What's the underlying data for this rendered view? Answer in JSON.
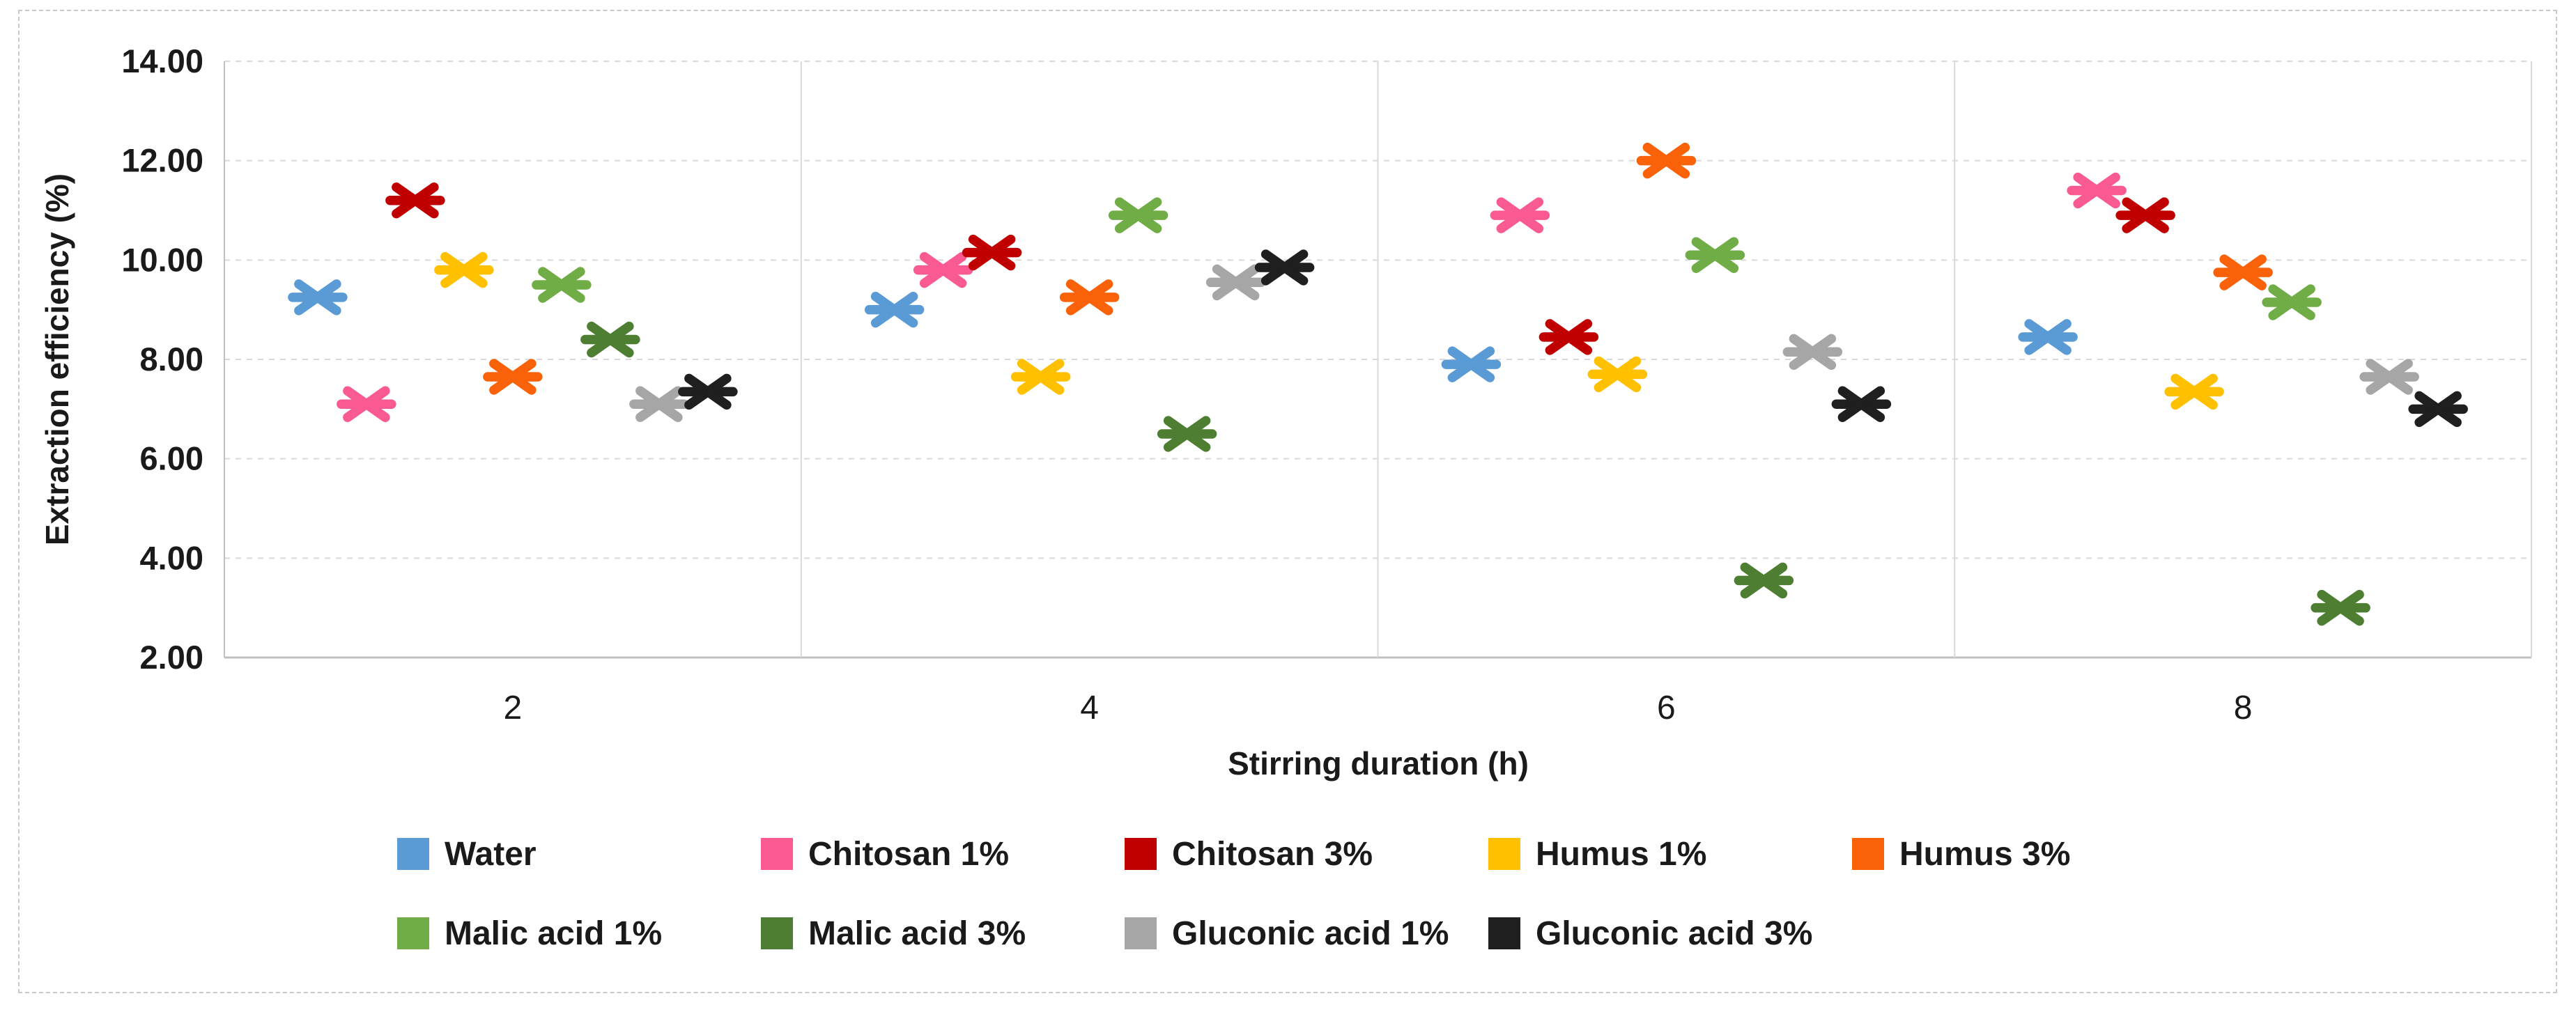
{
  "frame": {
    "background": "#ffffff",
    "border_color": "#c9c9c9",
    "text_color": "#1a1a1a",
    "gridline_color": "#d9d9d9",
    "axis_line_color": "#bfbfbf"
  },
  "chart_data": {
    "type": "scatter",
    "title": "",
    "xlabel": "Stirring duration (h)",
    "ylabel": "Extraction efficiency (%)",
    "marker_style": "six-spoke-asterisk",
    "x_categories": [
      "2",
      "4",
      "6",
      "8"
    ],
    "ylim": [
      2,
      14
    ],
    "ytick_step": 2,
    "ytick_labels": [
      "14.00",
      "12.00",
      "10.00",
      "8.00",
      "6.00",
      "4.00",
      "2.00"
    ],
    "grid": "horizontal dashed gridlines; vertical solid category dividers",
    "legend_position": "bottom",
    "legend_rows": [
      5,
      4
    ],
    "series": [
      {
        "name": "Water",
        "slug": "water",
        "color": "#5B9BD5",
        "values": [
          9.25,
          9.0,
          7.9,
          8.45
        ]
      },
      {
        "name": "Chitosan 1%",
        "slug": "chitosan-1",
        "color": "#F95A92",
        "values": [
          7.1,
          9.8,
          10.9,
          11.4
        ]
      },
      {
        "name": "Chitosan 3%",
        "slug": "chitosan-3",
        "color": "#C00000",
        "values": [
          11.2,
          10.15,
          8.45,
          10.9
        ]
      },
      {
        "name": "Humus 1%",
        "slug": "humus-1",
        "color": "#FFC000",
        "values": [
          9.8,
          7.65,
          7.7,
          7.35
        ]
      },
      {
        "name": "Humus 3%",
        "slug": "humus-3",
        "color": "#F96209",
        "values": [
          7.65,
          9.25,
          12.0,
          9.75
        ]
      },
      {
        "name": "Malic acid 1%",
        "slug": "malic-acid-1",
        "color": "#70AD47",
        "values": [
          9.5,
          10.9,
          10.1,
          9.15
        ]
      },
      {
        "name": "Malic acid 3%",
        "slug": "malic-acid-3",
        "color": "#4E7E31",
        "values": [
          8.4,
          6.5,
          3.55,
          3.0
        ]
      },
      {
        "name": "Gluconic acid 1%",
        "slug": "gluconic-acid-1",
        "color": "#A6A6A6",
        "values": [
          7.1,
          9.55,
          8.15,
          7.65
        ]
      },
      {
        "name": "Gluconic acid 3%",
        "slug": "gluconic-acid-3",
        "color": "#1F1F1F",
        "values": [
          7.35,
          9.85,
          7.1,
          7.0
        ]
      }
    ]
  }
}
